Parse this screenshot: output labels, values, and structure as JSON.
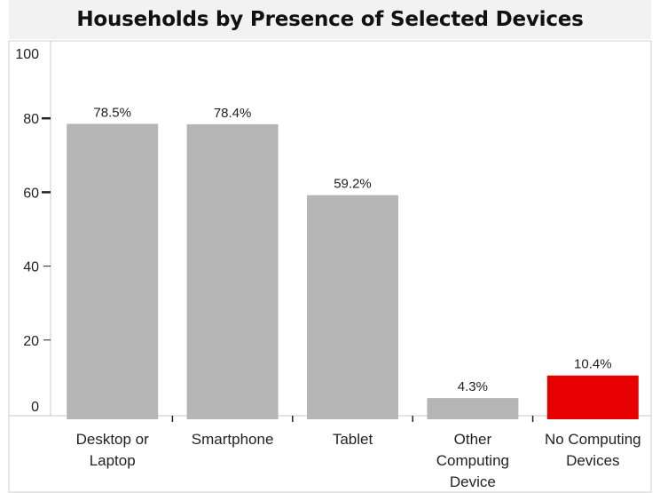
{
  "chart_data": {
    "type": "bar",
    "title": "Households by Presence of Selected Devices",
    "categories": [
      [
        "Desktop or",
        "Laptop"
      ],
      [
        "Smartphone"
      ],
      [
        "Tablet"
      ],
      [
        "Other",
        "Computing",
        "Device"
      ],
      [
        "No Computing",
        "Devices"
      ]
    ],
    "values": [
      78.5,
      78.4,
      59.2,
      4.3,
      10.4
    ],
    "data_labels": [
      "78.5%",
      "78.4%",
      "59.2%",
      "4.3%",
      "10.4%"
    ],
    "bar_colors": [
      "#b5b5b5",
      "#b5b5b5",
      "#b5b5b5",
      "#b5b5b5",
      "#e60000"
    ],
    "ylim": [
      0,
      100
    ],
    "yticks": [
      0,
      20,
      40,
      60,
      80,
      100
    ],
    "xlabel": "",
    "ylabel": "",
    "grid": false,
    "legend": false
  }
}
